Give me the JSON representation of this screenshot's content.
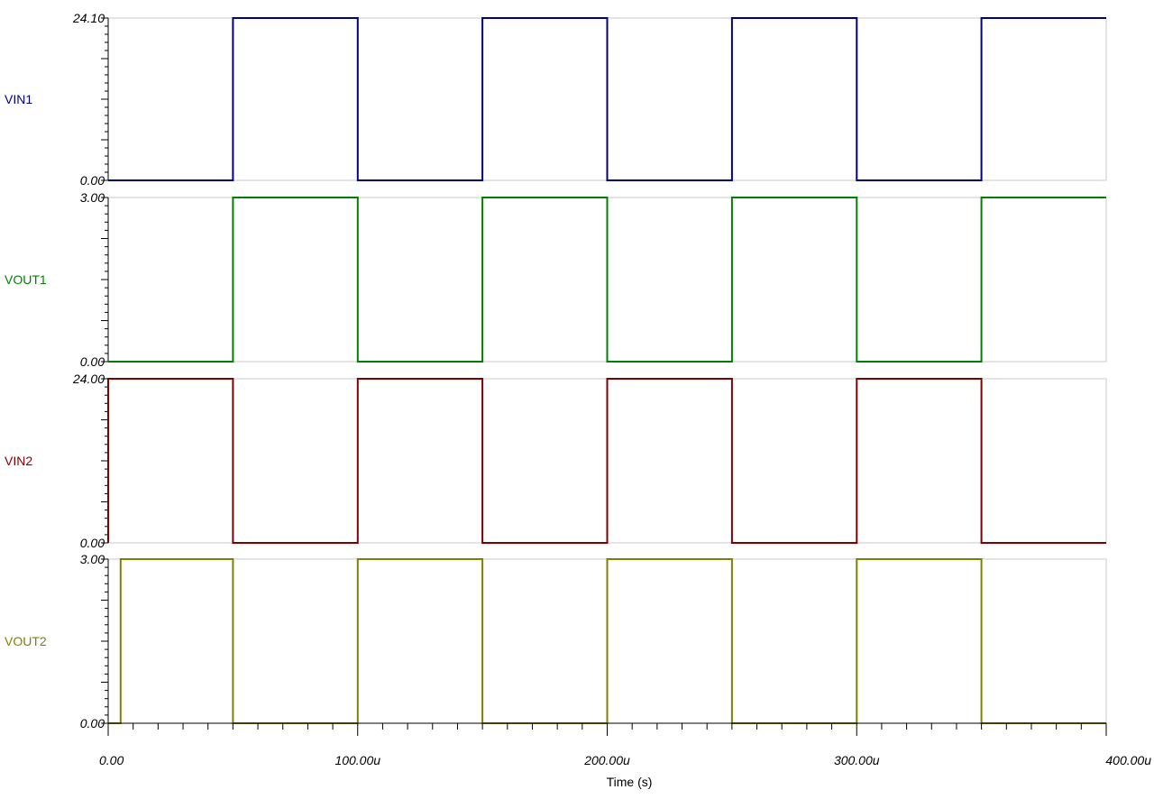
{
  "chart_data": {
    "type": "line",
    "xlabel": "Time (s)",
    "x_tick_labels": [
      "0.00",
      "100.00u",
      "200.00u",
      "300.00u",
      "400.00u"
    ],
    "x_ticks": [
      0,
      100,
      200,
      300,
      400
    ],
    "xlim": [
      0,
      400
    ],
    "x_unit": "us",
    "grid": false,
    "panels": [
      {
        "name": "VIN1",
        "color": "#000080",
        "ylim": [
          0,
          24.1
        ],
        "y_tick_labels": [
          "24.10",
          "0.00"
        ],
        "x": [
          0,
          50,
          50,
          100,
          100,
          150,
          150,
          200,
          200,
          250,
          250,
          300,
          300,
          350,
          350,
          400
        ],
        "y": [
          0,
          0,
          24.1,
          24.1,
          0,
          0,
          24.1,
          24.1,
          0,
          0,
          24.1,
          24.1,
          0,
          0,
          24.1,
          24.1
        ]
      },
      {
        "name": "VOUT1",
        "color": "#008000",
        "ylim": [
          0,
          3
        ],
        "y_tick_labels": [
          "3.00",
          "0.00"
        ],
        "x": [
          0,
          50,
          50,
          100,
          100,
          150,
          150,
          200,
          200,
          250,
          250,
          300,
          300,
          350,
          350,
          400
        ],
        "y": [
          0,
          0,
          3,
          3,
          0,
          0,
          3,
          3,
          0,
          0,
          3,
          3,
          0,
          0,
          3,
          3
        ]
      },
      {
        "name": "VIN2",
        "color": "#800000",
        "ylim": [
          0,
          24
        ],
        "y_tick_labels": [
          "24.00",
          "0.00"
        ],
        "x": [
          0,
          0,
          50,
          50,
          100,
          100,
          150,
          150,
          200,
          200,
          250,
          250,
          300,
          300,
          350,
          350,
          400
        ],
        "y": [
          0,
          24,
          24,
          0,
          0,
          24,
          24,
          0,
          0,
          24,
          24,
          0,
          0,
          24,
          24,
          0,
          0
        ],
        "y_start": 0
      },
      {
        "name": "VOUT2",
        "color": "#808000",
        "ylim": [
          0,
          3
        ],
        "y_tick_labels": [
          "3.00",
          "0.00"
        ],
        "x": [
          0,
          5,
          5,
          50,
          50,
          100,
          100,
          150,
          150,
          200,
          200,
          250,
          250,
          300,
          300,
          350,
          350,
          400
        ],
        "y": [
          0,
          0,
          3,
          3,
          0,
          0,
          3,
          3,
          0,
          0,
          3,
          3,
          0,
          0,
          3,
          3,
          0,
          0
        ]
      }
    ]
  }
}
